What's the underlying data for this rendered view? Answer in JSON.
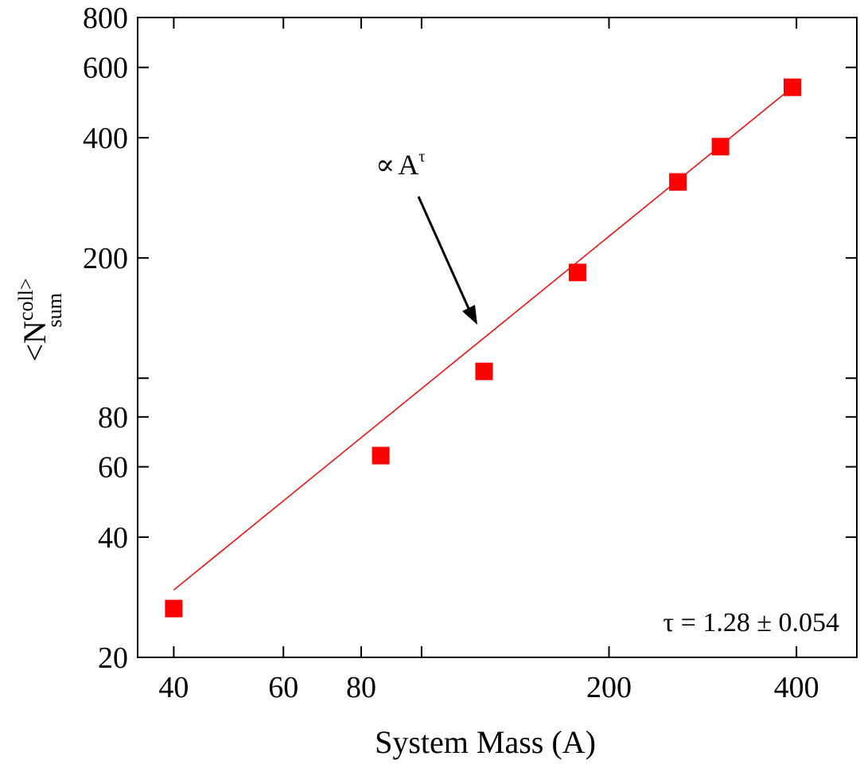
{
  "chart_data": {
    "type": "scatter",
    "xscale": "log",
    "yscale": "log",
    "xlim": [
      35,
      500
    ],
    "ylim": [
      20,
      800
    ],
    "x_major_ticks": [
      40,
      60,
      80,
      100,
      200,
      400
    ],
    "x_tick_labels": [
      {
        "value": 40,
        "label": "40"
      },
      {
        "value": 60,
        "label": "60"
      },
      {
        "value": 80,
        "label": "80"
      },
      {
        "value": 200,
        "label": "200"
      },
      {
        "value": 400,
        "label": "400"
      }
    ],
    "y_major_ticks": [
      20,
      40,
      60,
      80,
      100,
      200,
      400,
      600,
      800
    ],
    "y_tick_labels": [
      {
        "value": 20,
        "label": "20"
      },
      {
        "value": 40,
        "label": "40"
      },
      {
        "value": 60,
        "label": "60"
      },
      {
        "value": 80,
        "label": "80"
      },
      {
        "value": 200,
        "label": "200"
      },
      {
        "value": 400,
        "label": "400"
      },
      {
        "value": 600,
        "label": "600"
      },
      {
        "value": 800,
        "label": "800"
      }
    ],
    "xlabel": "System Mass (A)",
    "ylabel": {
      "base": "<N",
      "sup": "coll>",
      "sub": "sum"
    },
    "grid": false,
    "series": [
      {
        "marker": "square",
        "color": "#ff0000",
        "points": [
          {
            "x": 40,
            "y": 26.5
          },
          {
            "x": 86,
            "y": 64
          },
          {
            "x": 126,
            "y": 104
          },
          {
            "x": 178,
            "y": 184
          },
          {
            "x": 258,
            "y": 310
          },
          {
            "x": 302,
            "y": 380
          },
          {
            "x": 394,
            "y": 535
          }
        ]
      }
    ],
    "fit_line": {
      "color": "#ff0000",
      "from": {
        "x": 40,
        "y": 29.5
      },
      "to": {
        "x": 394,
        "y": 535
      }
    },
    "annotations": {
      "proportional": {
        "symbol": "∝",
        "base": "A",
        "sup": "τ"
      },
      "fit_result": "τ = 1.28 ± 0.054"
    }
  }
}
